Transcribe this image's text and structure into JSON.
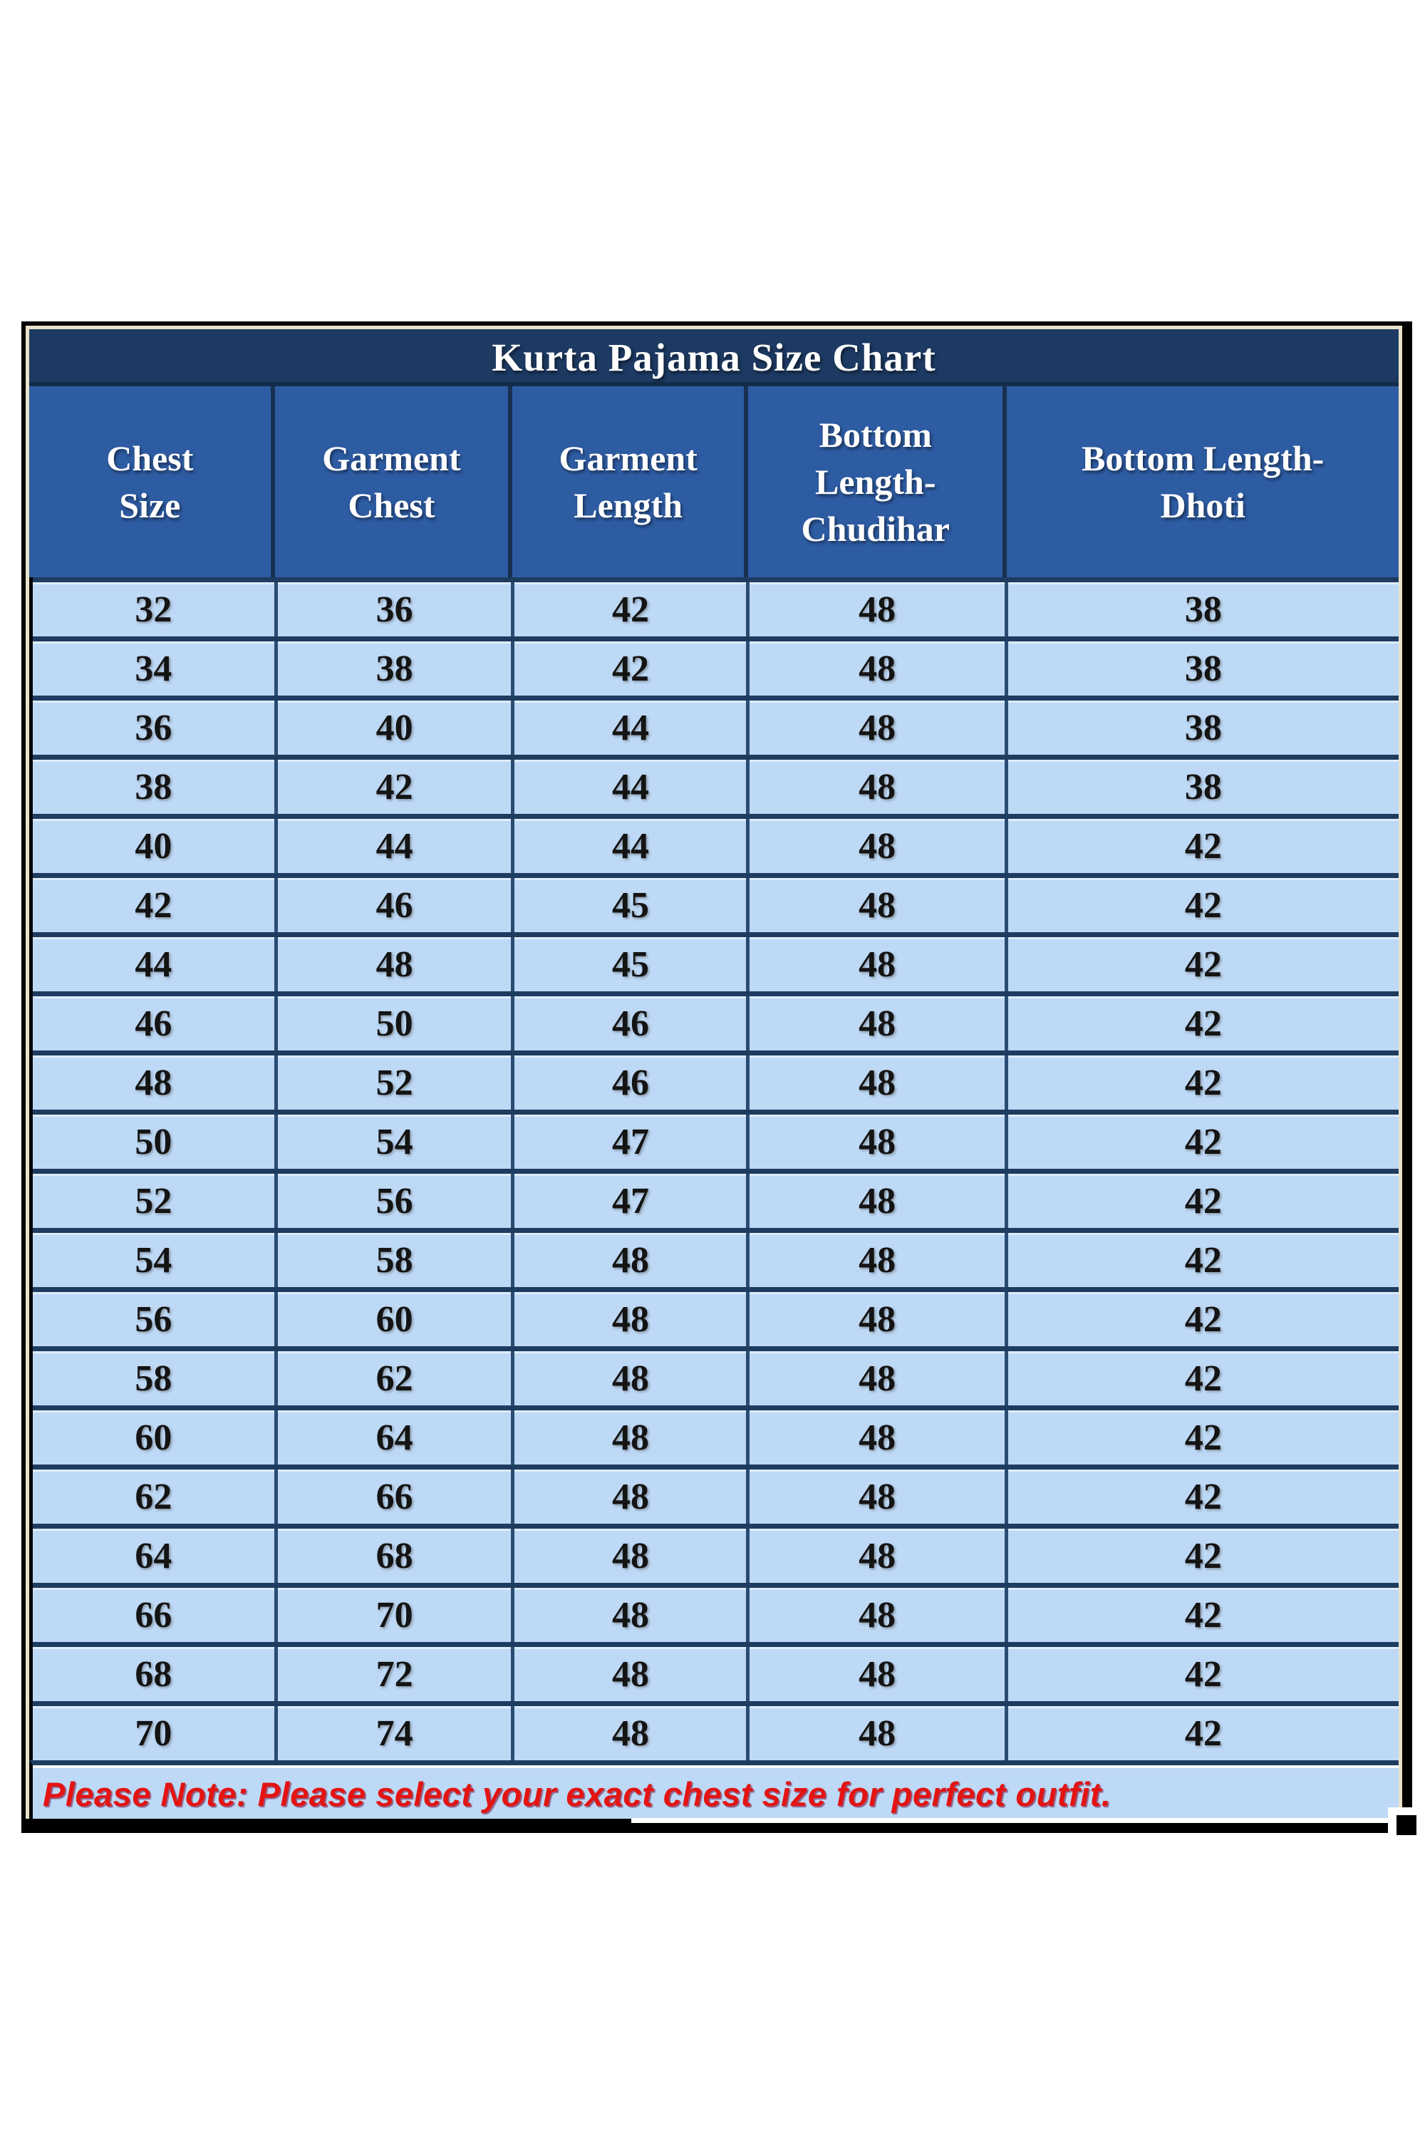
{
  "title": "Kurta Pajama Size Chart",
  "note": "Please Note: Please select your exact chest size for perfect outfit.",
  "chart_data": {
    "type": "table",
    "title": "Kurta Pajama Size Chart",
    "columns": [
      "Chest Size",
      "Garment Chest",
      "Garment Length",
      "Bottom Length-Chudihar",
      "Bottom Length-Dhoti"
    ],
    "columns_display": [
      "Chest\nSize",
      "Garment\nChest",
      "Garment\nLength",
      "Bottom\nLength-\nChudihar",
      "Bottom Length-\nDhoti"
    ],
    "rows": [
      [
        32,
        36,
        42,
        48,
        38
      ],
      [
        34,
        38,
        42,
        48,
        38
      ],
      [
        36,
        40,
        44,
        48,
        38
      ],
      [
        38,
        42,
        44,
        48,
        38
      ],
      [
        40,
        44,
        44,
        48,
        42
      ],
      [
        42,
        46,
        45,
        48,
        42
      ],
      [
        44,
        48,
        45,
        48,
        42
      ],
      [
        46,
        50,
        46,
        48,
        42
      ],
      [
        48,
        52,
        46,
        48,
        42
      ],
      [
        50,
        54,
        47,
        48,
        42
      ],
      [
        52,
        56,
        47,
        48,
        42
      ],
      [
        54,
        58,
        48,
        48,
        42
      ],
      [
        56,
        60,
        48,
        48,
        42
      ],
      [
        58,
        62,
        48,
        48,
        42
      ],
      [
        60,
        64,
        48,
        48,
        42
      ],
      [
        62,
        66,
        48,
        48,
        42
      ],
      [
        64,
        68,
        48,
        48,
        42
      ],
      [
        66,
        70,
        48,
        48,
        42
      ],
      [
        68,
        72,
        48,
        48,
        42
      ],
      [
        70,
        74,
        48,
        48,
        42
      ]
    ],
    "note": "Please Note: Please select your exact chest size for perfect outfit.",
    "layout": {
      "grid": "on",
      "header_position": "top"
    }
  },
  "colors": {
    "title_bg": "#1d3a63",
    "header_bg": "#2e5ca3",
    "row_bg": "#bdd9f6",
    "separator_navy": "#1e3c5f",
    "header_divider": "#16304f",
    "cell_divider": "#2a4b72",
    "frame_cream": "#e9e2cb",
    "outer_border": "#000000",
    "note_red": "#e31412",
    "header_text": "#ffffff",
    "cell_text": "#141414"
  }
}
